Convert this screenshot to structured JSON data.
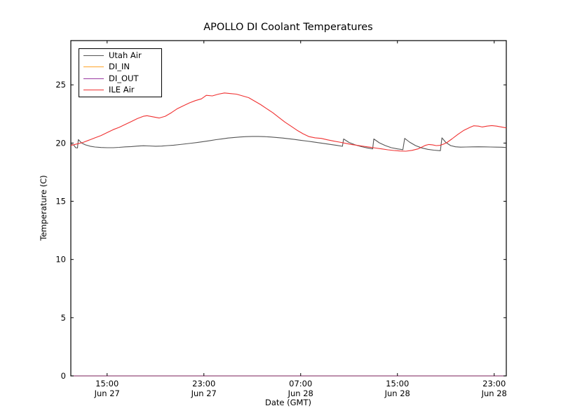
{
  "chart_data": {
    "type": "line",
    "title": "APOLLO DI Coolant Temperatures",
    "xlabel": "Date (GMT)",
    "ylabel": "Temperature (C)",
    "grid": false,
    "legend_position": "upper left",
    "x_axis_note": "x encoded as hours after Jun 27 12:00 GMT",
    "xlim": [
      0,
      36
    ],
    "ylim": [
      0,
      28.8
    ],
    "y_ticks": [
      0,
      5,
      10,
      15,
      20,
      25
    ],
    "x_ticks": [
      {
        "x": 3,
        "time": "15:00",
        "date": "Jun 27"
      },
      {
        "x": 11,
        "time": "23:00",
        "date": "Jun 27"
      },
      {
        "x": 19,
        "time": "07:00",
        "date": "Jun 28"
      },
      {
        "x": 27,
        "time": "15:00",
        "date": "Jun 28"
      },
      {
        "x": 35,
        "time": "23:00",
        "date": "Jun 28"
      }
    ],
    "series": [
      {
        "name": "Utah Air",
        "color": "#555555",
        "points": [
          [
            0,
            19.92
          ],
          [
            0.25,
            19.82
          ],
          [
            0.4,
            19.6
          ],
          [
            0.55,
            19.58
          ],
          [
            0.62,
            20.3
          ],
          [
            0.9,
            20.0
          ],
          [
            1.2,
            19.85
          ],
          [
            1.6,
            19.73
          ],
          [
            2,
            19.66
          ],
          [
            2.5,
            19.62
          ],
          [
            3,
            19.6
          ],
          [
            3.5,
            19.6
          ],
          [
            4,
            19.63
          ],
          [
            4.5,
            19.67
          ],
          [
            5,
            19.7
          ],
          [
            5.5,
            19.74
          ],
          [
            6,
            19.77
          ],
          [
            6.5,
            19.75
          ],
          [
            7,
            19.73
          ],
          [
            7.5,
            19.74
          ],
          [
            8,
            19.78
          ],
          [
            8.5,
            19.82
          ],
          [
            9,
            19.87
          ],
          [
            9.5,
            19.93
          ],
          [
            10,
            19.99
          ],
          [
            10.5,
            20.06
          ],
          [
            11,
            20.13
          ],
          [
            11.5,
            20.21
          ],
          [
            12,
            20.29
          ],
          [
            12.5,
            20.36
          ],
          [
            13,
            20.43
          ],
          [
            13.5,
            20.48
          ],
          [
            14,
            20.52
          ],
          [
            14.5,
            20.55
          ],
          [
            15,
            20.57
          ],
          [
            15.5,
            20.57
          ],
          [
            16,
            20.55
          ],
          [
            16.5,
            20.52
          ],
          [
            17,
            20.48
          ],
          [
            17.5,
            20.43
          ],
          [
            18,
            20.37
          ],
          [
            18.5,
            20.31
          ],
          [
            19,
            20.24
          ],
          [
            19.5,
            20.17
          ],
          [
            20,
            20.1
          ],
          [
            20.5,
            20.03
          ],
          [
            21,
            19.95
          ],
          [
            21.5,
            19.88
          ],
          [
            22,
            19.8
          ],
          [
            22.45,
            19.72
          ],
          [
            22.55,
            20.35
          ],
          [
            23,
            20.05
          ],
          [
            23.5,
            19.85
          ],
          [
            24,
            19.7
          ],
          [
            24.5,
            19.58
          ],
          [
            24.95,
            19.5
          ],
          [
            25.05,
            20.35
          ],
          [
            25.5,
            20.02
          ],
          [
            26,
            19.78
          ],
          [
            26.5,
            19.6
          ],
          [
            27,
            19.5
          ],
          [
            27.45,
            19.43
          ],
          [
            27.6,
            20.4
          ],
          [
            28,
            20.08
          ],
          [
            28.5,
            19.78
          ],
          [
            29,
            19.58
          ],
          [
            29.5,
            19.46
          ],
          [
            30,
            19.39
          ],
          [
            30.55,
            19.34
          ],
          [
            30.68,
            20.45
          ],
          [
            31,
            20.05
          ],
          [
            31.4,
            19.78
          ],
          [
            31.8,
            19.68
          ],
          [
            32.2,
            19.65
          ],
          [
            32.7,
            19.66
          ],
          [
            33.2,
            19.67
          ],
          [
            33.7,
            19.68
          ],
          [
            34.2,
            19.67
          ],
          [
            34.7,
            19.66
          ],
          [
            35.2,
            19.65
          ],
          [
            35.6,
            19.64
          ],
          [
            36,
            19.62
          ]
        ]
      },
      {
        "name": "DI_IN",
        "color": "#ffa428",
        "points": [
          [
            0,
            0
          ],
          [
            36,
            0
          ]
        ]
      },
      {
        "name": "DI_OUT",
        "color": "#9939a2",
        "points": [
          [
            0,
            0
          ],
          [
            36,
            0
          ]
        ]
      },
      {
        "name": "ILE Air",
        "color": "#f03232",
        "points": [
          [
            0,
            19.8
          ],
          [
            0.5,
            19.92
          ],
          [
            1,
            20.05
          ],
          [
            1.5,
            20.25
          ],
          [
            2,
            20.45
          ],
          [
            2.5,
            20.65
          ],
          [
            3,
            20.9
          ],
          [
            3.5,
            21.15
          ],
          [
            4,
            21.35
          ],
          [
            4.5,
            21.6
          ],
          [
            5,
            21.85
          ],
          [
            5.5,
            22.1
          ],
          [
            6,
            22.3
          ],
          [
            6.3,
            22.35
          ],
          [
            6.8,
            22.25
          ],
          [
            7.3,
            22.15
          ],
          [
            7.8,
            22.3
          ],
          [
            8.3,
            22.6
          ],
          [
            8.8,
            22.95
          ],
          [
            9.3,
            23.2
          ],
          [
            9.8,
            23.45
          ],
          [
            10.3,
            23.65
          ],
          [
            10.8,
            23.8
          ],
          [
            11.2,
            24.1
          ],
          [
            11.7,
            24.05
          ],
          [
            12.2,
            24.2
          ],
          [
            12.7,
            24.3
          ],
          [
            13.2,
            24.25
          ],
          [
            13.7,
            24.2
          ],
          [
            14.2,
            24.05
          ],
          [
            14.7,
            23.9
          ],
          [
            15.2,
            23.6
          ],
          [
            15.7,
            23.3
          ],
          [
            16.2,
            22.95
          ],
          [
            16.7,
            22.6
          ],
          [
            17.2,
            22.2
          ],
          [
            17.7,
            21.8
          ],
          [
            18.2,
            21.45
          ],
          [
            18.7,
            21.1
          ],
          [
            19.2,
            20.8
          ],
          [
            19.7,
            20.55
          ],
          [
            20.2,
            20.45
          ],
          [
            20.7,
            20.4
          ],
          [
            21.2,
            20.28
          ],
          [
            21.7,
            20.18
          ],
          [
            22.2,
            20.08
          ],
          [
            22.7,
            19.98
          ],
          [
            23.2,
            19.88
          ],
          [
            23.7,
            19.8
          ],
          [
            24.2,
            19.72
          ],
          [
            24.7,
            19.65
          ],
          [
            25.2,
            19.57
          ],
          [
            25.7,
            19.5
          ],
          [
            26.2,
            19.42
          ],
          [
            26.7,
            19.36
          ],
          [
            27.2,
            19.32
          ],
          [
            27.7,
            19.3
          ],
          [
            28.2,
            19.37
          ],
          [
            28.7,
            19.5
          ],
          [
            29,
            19.65
          ],
          [
            29.3,
            19.8
          ],
          [
            29.6,
            19.88
          ],
          [
            29.9,
            19.85
          ],
          [
            30.2,
            19.78
          ],
          [
            30.5,
            19.8
          ],
          [
            30.8,
            19.9
          ],
          [
            31.1,
            20.05
          ],
          [
            31.5,
            20.35
          ],
          [
            32,
            20.75
          ],
          [
            32.5,
            21.1
          ],
          [
            33,
            21.35
          ],
          [
            33.3,
            21.48
          ],
          [
            33.7,
            21.45
          ],
          [
            34,
            21.38
          ],
          [
            34.4,
            21.45
          ],
          [
            34.8,
            21.5
          ],
          [
            35.2,
            21.45
          ],
          [
            35.6,
            21.38
          ],
          [
            36,
            21.3
          ]
        ]
      }
    ]
  }
}
